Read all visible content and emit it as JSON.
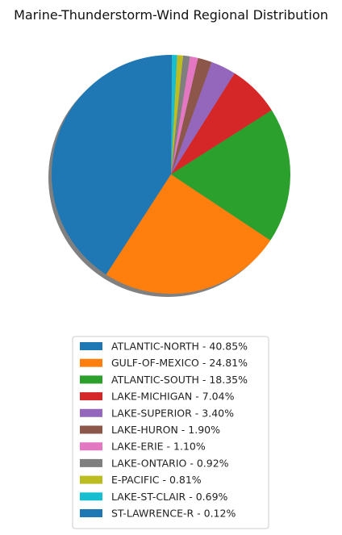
{
  "chart_data": {
    "type": "pie",
    "title": "Marine-Thunderstorm-Wind Regional Distribution",
    "start_angle_deg": 90,
    "direction": "counterclockwise",
    "shadow": true,
    "legend_position": "bottom-center",
    "labels": [
      "ATLANTIC-NORTH - 40.85%",
      "GULF-OF-MEXICO - 24.81%",
      "ATLANTIC-SOUTH - 18.35%",
      "LAKE-MICHIGAN - 7.04%",
      "LAKE-SUPERIOR - 3.40%",
      "LAKE-HURON - 1.90%",
      "LAKE-ERIE - 1.10%",
      "LAKE-ONTARIO - 0.92%",
      "E-PACIFIC - 0.81%",
      "LAKE-ST-CLAIR - 0.69%",
      "ST-LAWRENCE-R - 0.12%"
    ],
    "values": [
      40.85,
      24.81,
      18.35,
      7.04,
      3.4,
      1.9,
      1.1,
      0.92,
      0.81,
      0.69,
      0.12
    ],
    "colors": [
      "#1f77b4",
      "#ff7f0e",
      "#2ca02c",
      "#d62728",
      "#9467bd",
      "#8c564b",
      "#e377c2",
      "#7f7f7f",
      "#bcbd22",
      "#17becf",
      "#1f77b4"
    ]
  }
}
